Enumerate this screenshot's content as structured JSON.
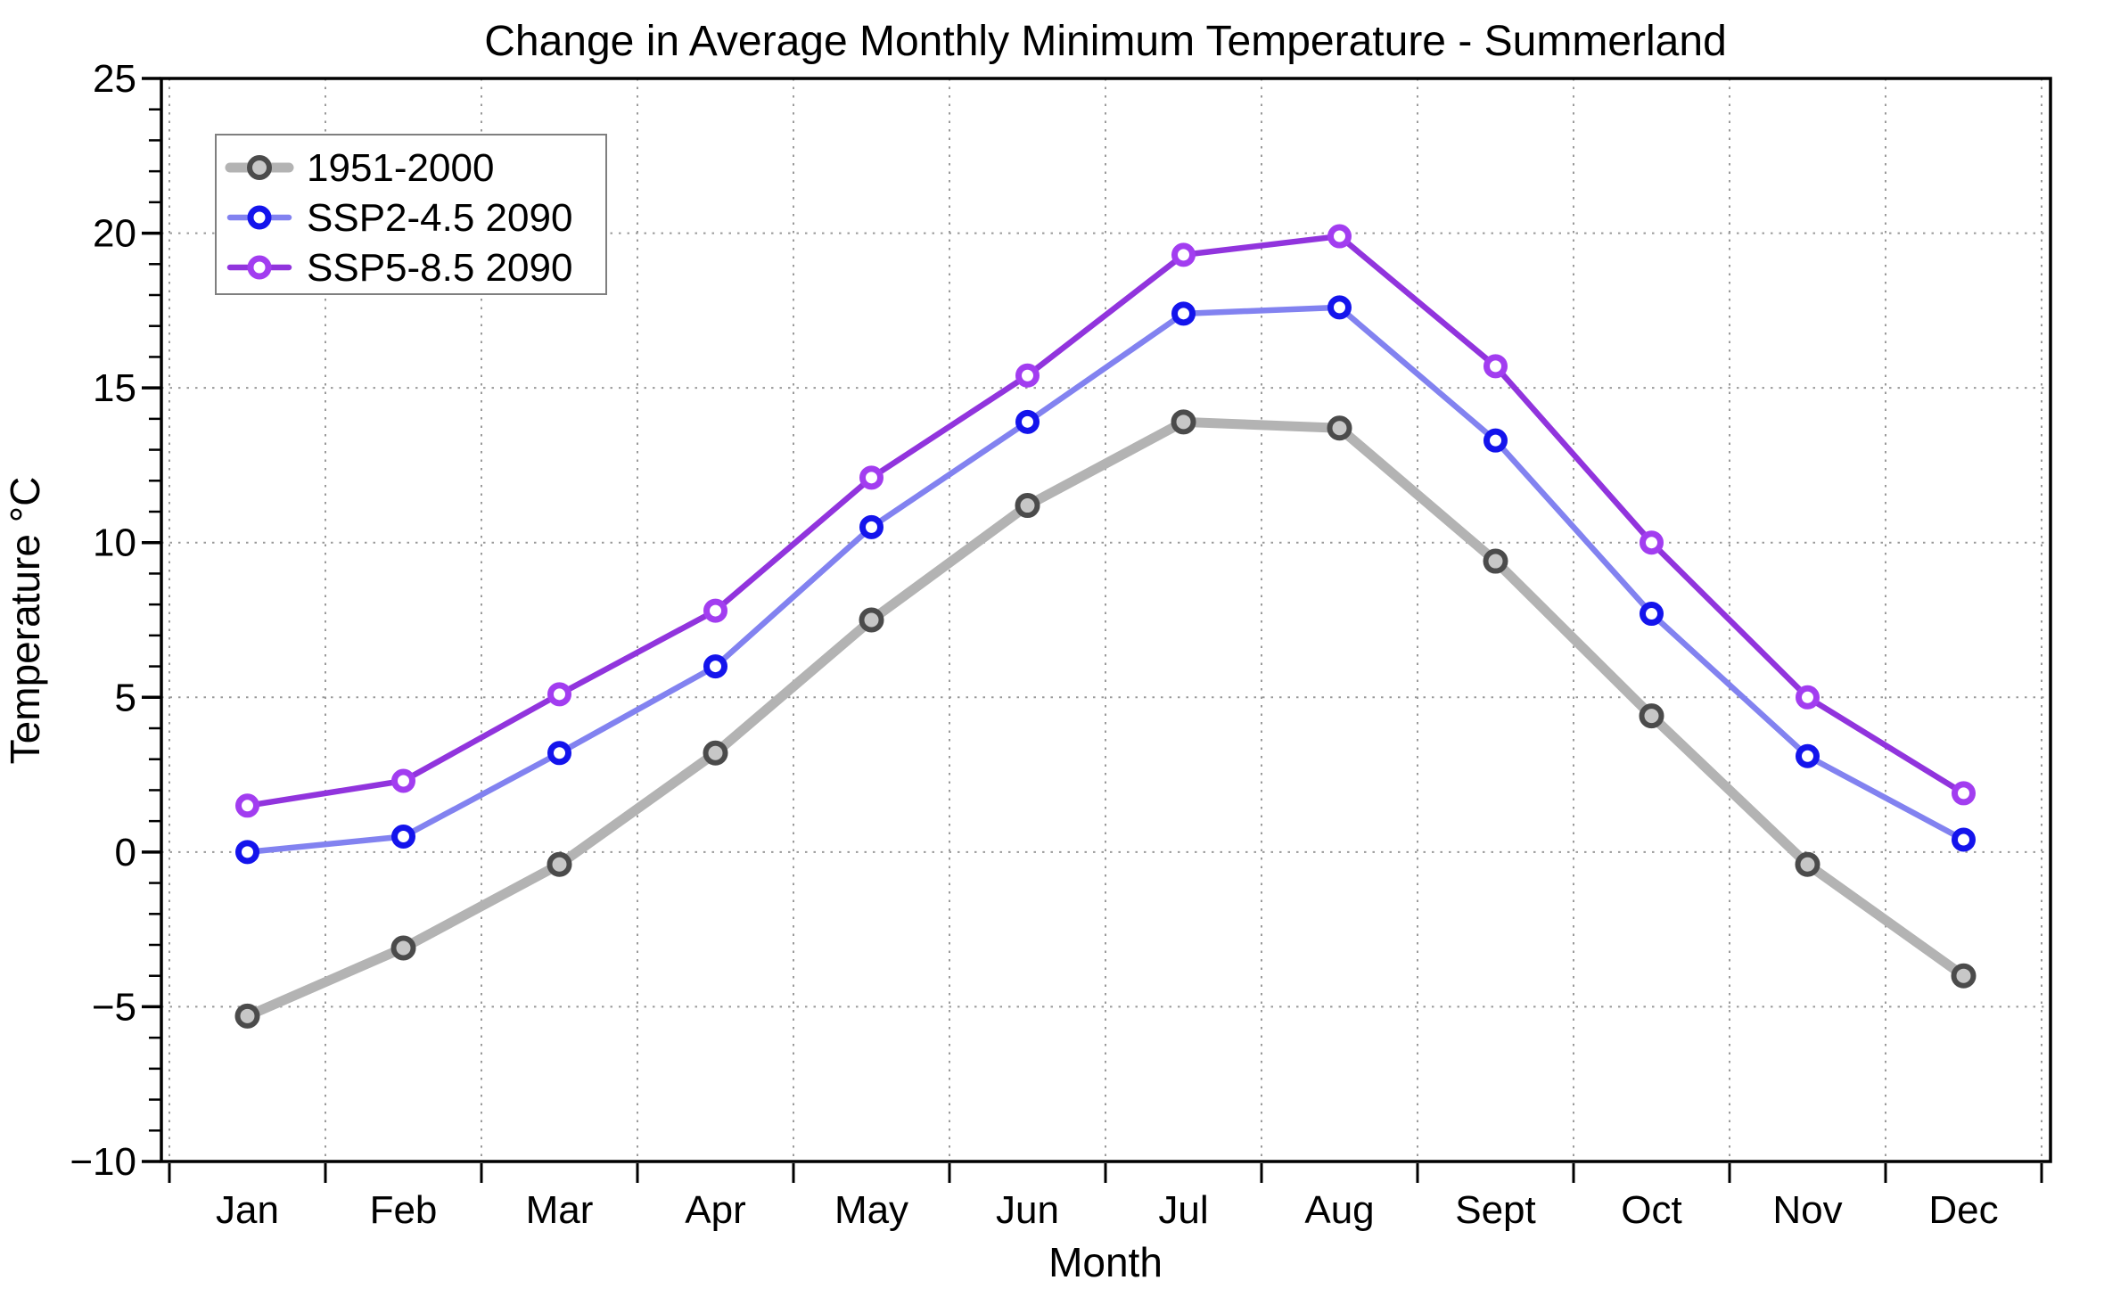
{
  "chart_data": {
    "type": "line",
    "title": "Change in Average Monthly Minimum Temperature - Summerland",
    "xlabel": "Month",
    "ylabel": "Temperature °C",
    "categories": [
      "Jan",
      "Feb",
      "Mar",
      "Apr",
      "May",
      "Jun",
      "Jul",
      "Aug",
      "Sept",
      "Oct",
      "Nov",
      "Dec"
    ],
    "ylim": [
      -10,
      25
    ],
    "yticks": [
      {
        "value": 25,
        "label": "25"
      },
      {
        "value": 20,
        "label": "20"
      },
      {
        "value": 15,
        "label": "15"
      },
      {
        "value": 10,
        "label": "10"
      },
      {
        "value": 5,
        "label": "5"
      },
      {
        "value": 0,
        "label": "0"
      },
      {
        "value": -5,
        "label": "−5"
      },
      {
        "value": -10,
        "label": "−10"
      }
    ],
    "y_minor_tick_step": 1,
    "grid": "dotted gray; horizontal at major y ticks, vertical at month boundaries",
    "legend_position": "upper left",
    "series": [
      {
        "name": "1951-2000",
        "line_color": "#b3b3b3",
        "marker_edge_color": "#4b4b4b",
        "marker_face_color": "#c7c7c7",
        "values": [
          -5.3,
          -3.1,
          -0.4,
          3.2,
          7.5,
          11.2,
          13.9,
          13.7,
          9.4,
          4.4,
          -0.4,
          -4.0
        ]
      },
      {
        "name": "SSP2-4.5 2090",
        "line_color": "#8282f0",
        "marker_edge_color": "#1414ec",
        "marker_face_color": "#ffffff",
        "values": [
          0.0,
          0.5,
          3.2,
          6.0,
          10.5,
          13.9,
          17.4,
          17.6,
          13.3,
          7.7,
          3.1,
          0.4
        ]
      },
      {
        "name": "SSP5-8.5 2090",
        "line_color": "#9134dd",
        "marker_edge_color": "#a23df0",
        "marker_face_color": "#ffffff",
        "values": [
          1.5,
          2.3,
          5.1,
          7.8,
          12.1,
          15.4,
          19.3,
          19.9,
          15.7,
          10.0,
          5.0,
          1.9
        ]
      }
    ],
    "colors": {
      "spine": "#000000",
      "gridline": "#999999",
      "background": "#ffffff",
      "legend_border": "#7f7f7f"
    }
  }
}
